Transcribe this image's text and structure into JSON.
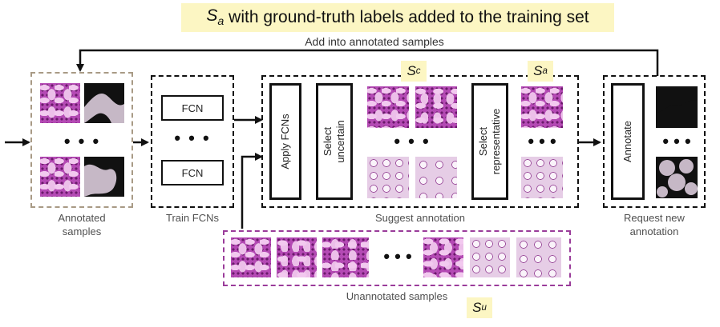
{
  "header": {
    "title_symbol": "S",
    "title_symbol_sub": "a",
    "title_text": " with ground-truth labels added to the training set",
    "feedback_label": "Add into annotated samples"
  },
  "symbols": {
    "sc": {
      "main": "S",
      "sub": "c"
    },
    "sa": {
      "main": "S",
      "sub": "a"
    },
    "su": {
      "main": "S",
      "sub": "u"
    }
  },
  "stages": {
    "annotated_label": "Annotated\nsamples",
    "train_label": "Train FCNs",
    "fcn_label": "FCN",
    "suggest_label": "Suggest annotation",
    "apply_label": "Apply FCNs",
    "select_uncertain_label": "Select\nuncertain",
    "select_representative_label": "Select\nrepresentative",
    "annotate_label": "Annotate",
    "request_label": "Request new\nannotation",
    "unannotated_label": "Unannotated samples"
  },
  "ellipsis": "• • •",
  "colors": {
    "highlight": "#fcf6c3",
    "stain_purple": "#b44ab4",
    "unannotated_border": "#9a3c9a",
    "annotated_border": "#a89a85"
  }
}
